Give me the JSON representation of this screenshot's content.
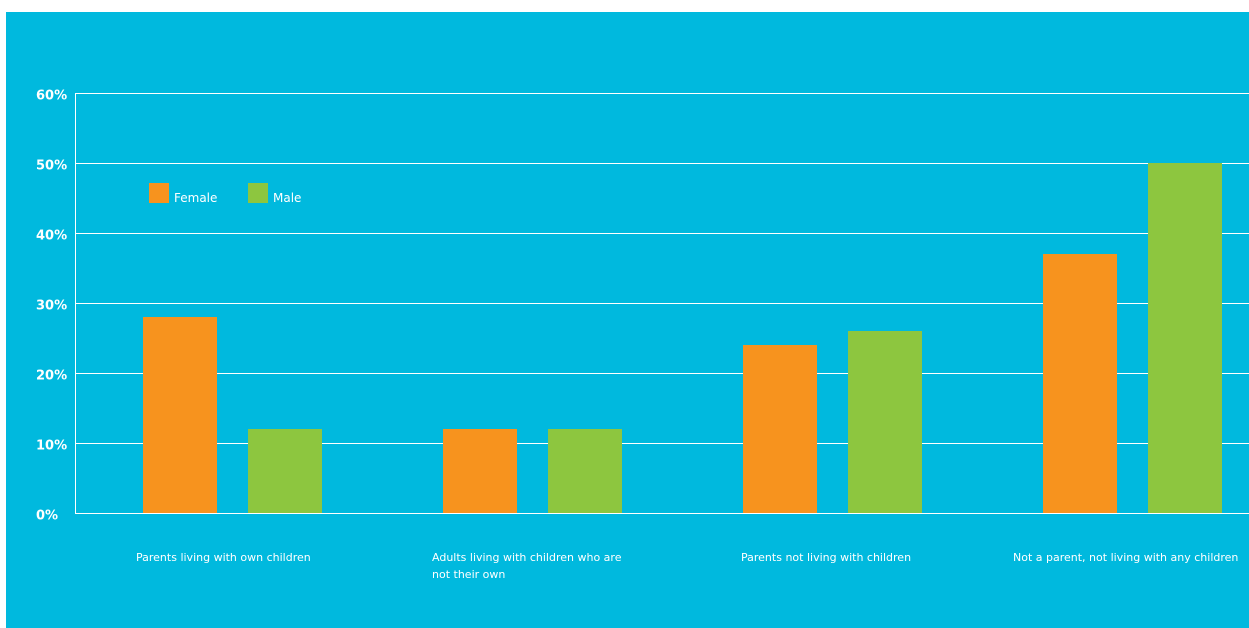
{
  "chart_data": {
    "type": "bar",
    "title": "",
    "xlabel": "",
    "ylabel": "",
    "ylim": [
      0,
      60
    ],
    "yticks": [
      "0%",
      "10%",
      "20%",
      "30%",
      "40%",
      "50%",
      "60%"
    ],
    "ytick_values": [
      0,
      10,
      20,
      30,
      40,
      50,
      60
    ],
    "categories": [
      [
        "Parents living with own children"
      ],
      [
        "Adults living with children who are",
        "not their own"
      ],
      [
        "Parents not living with children"
      ],
      [
        "Not a parent, not living with any children"
      ]
    ],
    "series": [
      {
        "name": "Female",
        "values": [
          28,
          12,
          24,
          37
        ],
        "color": "#f7931e"
      },
      {
        "name": "Male",
        "values": [
          12,
          12,
          26,
          50
        ],
        "color": "#8dc63f"
      }
    ],
    "grid": true,
    "legend_position": "top-left",
    "colors": {
      "background": "#00b9de",
      "gridline": "#ffffff",
      "text": "#ffffff"
    }
  }
}
